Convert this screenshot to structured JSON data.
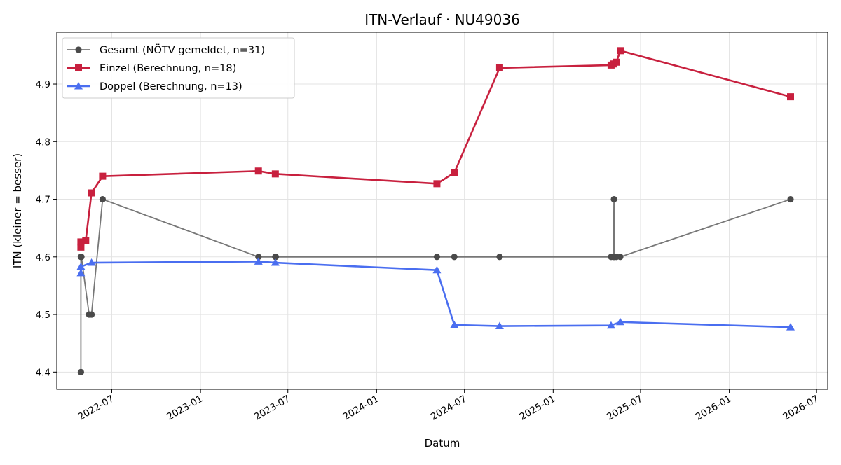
{
  "chart_data": {
    "type": "line",
    "title": "ITN-Verlauf · NU49036",
    "xlabel": "Datum",
    "ylabel": "ITN  (kleiner = besser)",
    "xlim": [
      "2022-03-09",
      "2026-07-24"
    ],
    "ylim": [
      4.37,
      4.99
    ],
    "x_ticks": [
      "2022-07",
      "2023-01",
      "2023-07",
      "2024-01",
      "2024-07",
      "2025-01",
      "2025-07",
      "2026-01",
      "2026-07"
    ],
    "y_ticks": [
      "4.4",
      "4.5",
      "4.6",
      "4.7",
      "4.8",
      "4.9"
    ],
    "grid": true,
    "legend_position": "top-left",
    "series": [
      {
        "name": "Gesamt (NÖTV gemeldet, n=31)",
        "color": "#666666",
        "marker": "circle",
        "points": [
          [
            "2022-04-28",
            4.4
          ],
          [
            "2022-04-28",
            4.6
          ],
          [
            "2022-04-29",
            4.6
          ],
          [
            "2022-05-15",
            4.5
          ],
          [
            "2022-05-20",
            4.5
          ],
          [
            "2022-06-12",
            4.7
          ],
          [
            "2023-05-01",
            4.6
          ],
          [
            "2023-06-05",
            4.6
          ],
          [
            "2023-06-06",
            4.6
          ],
          [
            "2024-05-05",
            4.6
          ],
          [
            "2024-06-10",
            4.6
          ],
          [
            "2024-09-12",
            4.6
          ],
          [
            "2025-05-01",
            4.6
          ],
          [
            "2025-05-06",
            4.6
          ],
          [
            "2025-05-07",
            4.7
          ],
          [
            "2025-05-08",
            4.6
          ],
          [
            "2025-05-12",
            4.6
          ],
          [
            "2025-05-20",
            4.6
          ],
          [
            "2026-05-08",
            4.7
          ]
        ]
      },
      {
        "name": "Einzel (Berechnung, n=18)",
        "color": "#c8203e",
        "marker": "square",
        "points": [
          [
            "2022-04-28",
            4.617
          ],
          [
            "2022-04-28",
            4.626
          ],
          [
            "2022-05-08",
            4.628
          ],
          [
            "2022-05-20",
            4.711
          ],
          [
            "2022-06-12",
            4.74
          ],
          [
            "2023-05-01",
            4.749
          ],
          [
            "2023-06-05",
            4.744
          ],
          [
            "2024-05-05",
            4.727
          ],
          [
            "2024-06-10",
            4.746
          ],
          [
            "2024-09-12",
            4.928
          ],
          [
            "2025-05-01",
            4.933
          ],
          [
            "2025-05-06",
            4.935
          ],
          [
            "2025-05-12",
            4.938
          ],
          [
            "2025-05-20",
            4.958
          ],
          [
            "2026-05-08",
            4.878
          ]
        ]
      },
      {
        "name": "Doppel (Berechnung, n=13)",
        "color": "#4a6ef0",
        "marker": "triangle",
        "points": [
          [
            "2022-04-28",
            4.572
          ],
          [
            "2022-04-28",
            4.583
          ],
          [
            "2022-05-20",
            4.59
          ],
          [
            "2023-05-01",
            4.592
          ],
          [
            "2023-06-05",
            4.59
          ],
          [
            "2024-05-05",
            4.577
          ],
          [
            "2024-06-10",
            4.482
          ],
          [
            "2024-09-12",
            4.48
          ],
          [
            "2025-05-01",
            4.481
          ],
          [
            "2025-05-20",
            4.487
          ],
          [
            "2026-05-08",
            4.478
          ]
        ]
      }
    ]
  }
}
